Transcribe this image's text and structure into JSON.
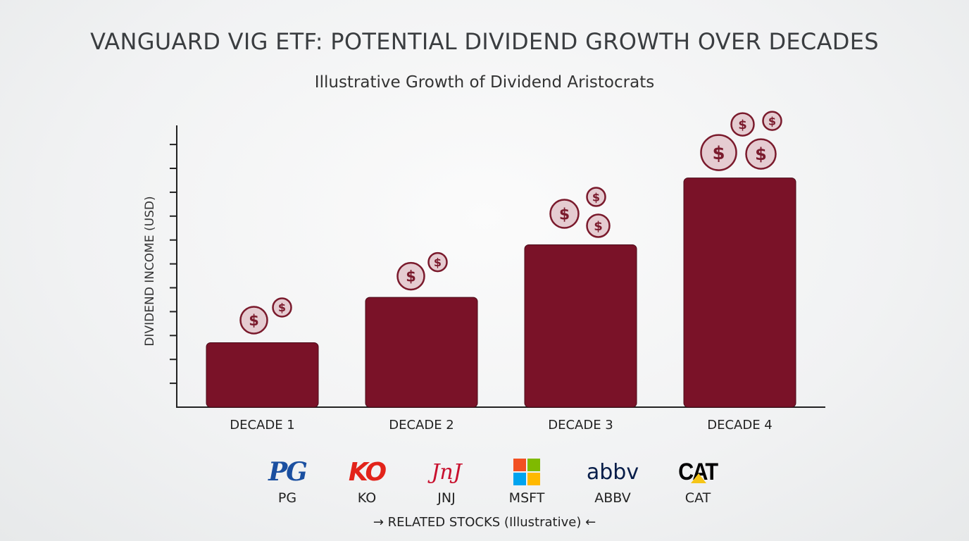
{
  "chart_data": {
    "type": "bar",
    "title": "VANGUARD VIG ETF: POTENTIAL DIVIDEND GROWTH OVER DECADES",
    "subtitle": "Illustrative Growth of Dividend Aristocrats",
    "xlabel": "",
    "ylabel": "DIVIDEND INCOME (USD)",
    "categories": [
      "DECADE 1",
      "DECADE 2",
      "DECADE 3",
      "DECADE 4"
    ],
    "values": [
      2.7,
      4.6,
      6.8,
      9.6
    ],
    "ylim": [
      0,
      11.8
    ],
    "y_ticks_unlabeled": 11,
    "grid": false,
    "bar_color": "#7a1228",
    "coin_icons_per_bar": [
      2,
      2,
      3,
      4
    ]
  },
  "stocks": {
    "items": [
      {
        "ticker": "PG",
        "logo": "PG",
        "color": "#1a4fa0"
      },
      {
        "ticker": "KO",
        "logo": "KO",
        "color": "#e2231a"
      },
      {
        "ticker": "JNJ",
        "logo": "JnJ",
        "color": "#c8102e"
      },
      {
        "ticker": "MSFT",
        "logo": "microsoft-logo",
        "color": "#f25022"
      },
      {
        "ticker": "ABBV",
        "logo": "abbv",
        "color": "#071d49"
      },
      {
        "ticker": "CAT",
        "logo": "CAT",
        "color": "#000000"
      }
    ],
    "footer": "→ RELATED STOCKS (Illustrative) ←"
  }
}
